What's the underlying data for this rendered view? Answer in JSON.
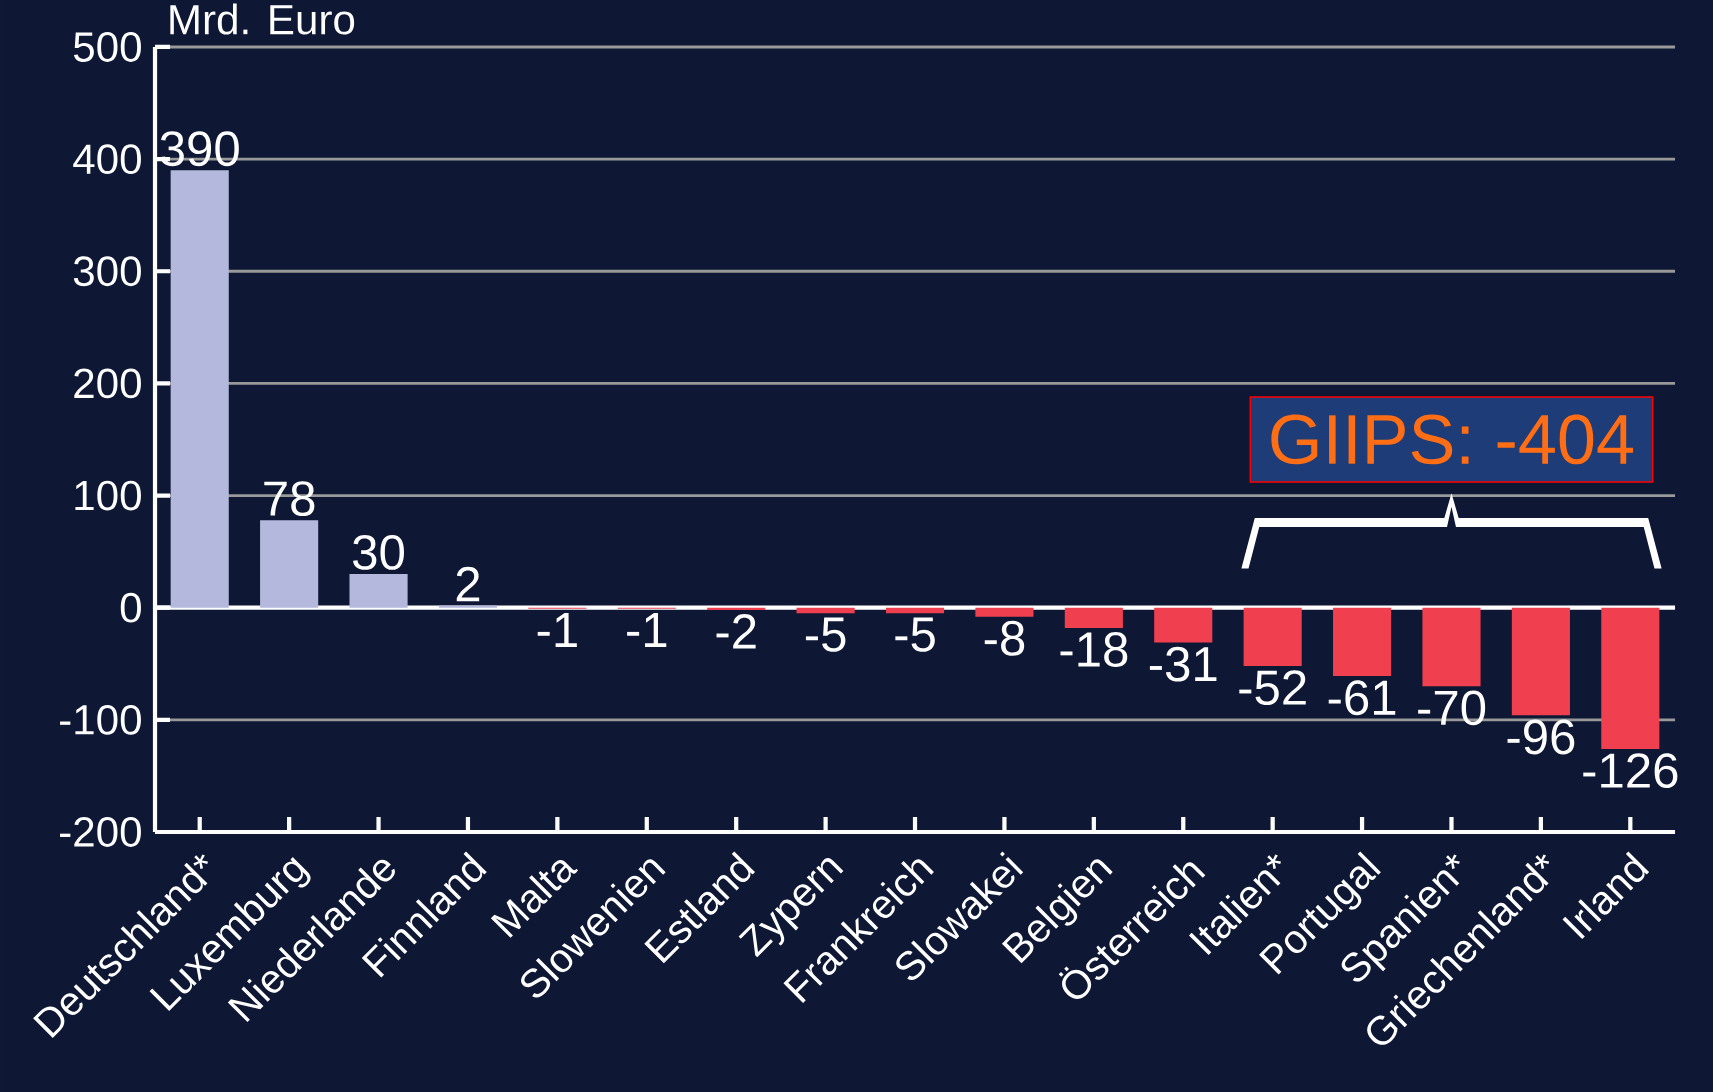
{
  "chart_data": {
    "type": "bar",
    "ylabel": "Mrd. Euro",
    "categories": [
      "Deutschland*",
      "Luxemburg",
      "Niederlande",
      "Finnland",
      "Malta",
      "Slowenien",
      "Estland",
      "Zypern",
      "Frankreich",
      "Slowakei",
      "Belgien",
      "Österreich",
      "Italien*",
      "Portugal",
      "Spanien*",
      "Griechenland*",
      "Irland"
    ],
    "values": [
      390,
      78,
      30,
      2,
      -1,
      -1,
      -2,
      -5,
      -5,
      -8,
      -18,
      -31,
      -52,
      -61,
      -70,
      -96,
      -126
    ],
    "colors": [
      "#b4b8dc",
      "#b4b8dc",
      "#b4b8dc",
      "#b4b8dc",
      "#f04050",
      "#f04050",
      "#f04050",
      "#f04050",
      "#f04050",
      "#f04050",
      "#f04050",
      "#f04050",
      "#f04050",
      "#f04050",
      "#f04050",
      "#f04050",
      "#f04050"
    ],
    "ylim": [
      -200,
      500
    ],
    "yticks": [
      -200,
      -100,
      0,
      100,
      200,
      300,
      400,
      500
    ],
    "grid": "y",
    "data_labels": true,
    "annotations": [
      "GIIPS: -404"
    ]
  }
}
